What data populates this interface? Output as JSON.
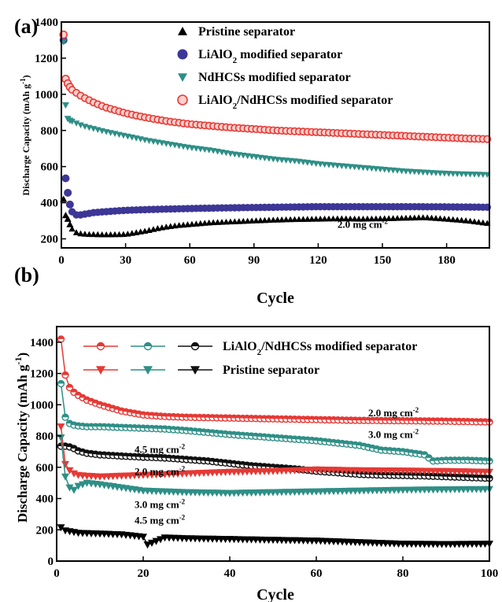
{
  "chart_data": [
    {
      "type": "scatter",
      "panel_label": "(a)",
      "xlabel": "Cycle",
      "ylabel": "Discharge Capacity (mAh g",
      "ylabel_sup": "-1",
      "ylabel_end": ")",
      "xlim": [
        0,
        200
      ],
      "ylim": [
        150,
        1400
      ],
      "xticks": [
        0,
        30,
        60,
        90,
        120,
        150,
        180
      ],
      "yticks": [
        200,
        400,
        600,
        800,
        1000,
        1200,
        1400
      ],
      "annotation": {
        "text": "2.0 mg cm",
        "sup": "-2",
        "x": 129,
        "y": 260
      },
      "legend": [
        {
          "main": "Pristine separator",
          "color": "#000000",
          "marker": "triangle-up"
        },
        {
          "main": "LiAlO",
          "sub": "2",
          "rest": " modified separator",
          "color": "#3c3796",
          "marker": "circle"
        },
        {
          "main": "NdHCSs modified separator",
          "color": "#2e8f86",
          "marker": "triangle-down"
        },
        {
          "main": "LiAlO",
          "sub": "2",
          "rest": "/NdHCSs modified separator",
          "color": "#e53935",
          "marker": "circle-open"
        }
      ],
      "series": [
        {
          "name": "Pristine separator",
          "color": "#000000",
          "marker": "triangle-up",
          "x": [
            1,
            2,
            3,
            4,
            5,
            6,
            8,
            10,
            12,
            15,
            20,
            25,
            30,
            35,
            40,
            45,
            50,
            55,
            60,
            70,
            80,
            90,
            100,
            110,
            120,
            130,
            140,
            150,
            160,
            170,
            180,
            190,
            200
          ],
          "y": [
            420,
            330,
            310,
            280,
            255,
            240,
            230,
            228,
            225,
            225,
            223,
            224,
            225,
            235,
            245,
            258,
            268,
            275,
            280,
            290,
            295,
            300,
            305,
            308,
            310,
            312,
            310,
            312,
            315,
            318,
            310,
            300,
            285
          ]
        },
        {
          "name": "LiAlO2 modified separator",
          "color": "#3c3796",
          "marker": "circle",
          "x": [
            1,
            2,
            3,
            4,
            5,
            6,
            8,
            10,
            15,
            20,
            30,
            40,
            50,
            60,
            80,
            100,
            120,
            140,
            160,
            180,
            200
          ],
          "y": [
            1300,
            535,
            455,
            390,
            350,
            335,
            330,
            335,
            345,
            350,
            358,
            362,
            365,
            368,
            372,
            375,
            378,
            378,
            378,
            377,
            375
          ]
        },
        {
          "name": "NdHCSs modified separator",
          "color": "#2e8f86",
          "marker": "triangle-down",
          "x": [
            1,
            2,
            3,
            4,
            5,
            8,
            10,
            15,
            20,
            30,
            40,
            50,
            60,
            70,
            80,
            90,
            100,
            110,
            120,
            130,
            140,
            150,
            160,
            170,
            180,
            190,
            200
          ],
          "y": [
            1290,
            940,
            865,
            855,
            850,
            835,
            825,
            810,
            795,
            770,
            745,
            725,
            705,
            690,
            670,
            655,
            640,
            630,
            615,
            605,
            595,
            585,
            575,
            568,
            562,
            558,
            555
          ]
        },
        {
          "name": "LiAlO2/NdHCSs modified separator",
          "color": "#e53935",
          "marker": "circle-open",
          "x": [
            1,
            2,
            3,
            4,
            5,
            8,
            10,
            15,
            20,
            30,
            40,
            50,
            60,
            70,
            80,
            90,
            100,
            110,
            120,
            130,
            140,
            150,
            160,
            170,
            180,
            190,
            200
          ],
          "y": [
            1330,
            1085,
            1060,
            1040,
            1025,
            1000,
            985,
            955,
            930,
            895,
            870,
            850,
            835,
            825,
            815,
            808,
            800,
            795,
            790,
            785,
            780,
            775,
            770,
            765,
            760,
            755,
            752
          ]
        }
      ]
    },
    {
      "type": "scatter",
      "panel_label": "(b)",
      "xlabel": "Cycle",
      "ylabel": "Discharge Capacity  (mAh g",
      "ylabel_sup": "-1",
      "ylabel_end": ")",
      "xlim": [
        0,
        100
      ],
      "ylim": [
        0,
        1500
      ],
      "xticks": [
        0,
        20,
        40,
        60,
        80,
        100
      ],
      "yticks": [
        0,
        200,
        400,
        600,
        800,
        1000,
        1200,
        1400
      ],
      "legend": [
        {
          "main": "LiAlO",
          "sub": "2",
          "rest": "/NdHCSs modified separator",
          "markers": [
            "circle-red",
            "circle-teal",
            "circle-black"
          ]
        },
        {
          "main": "Pristine separator",
          "markers": [
            "tri-red",
            "tri-teal",
            "tri-black"
          ]
        }
      ],
      "annotations": [
        {
          "text": "2.0 mg cm",
          "sup": "-2",
          "x": 72,
          "y": 925
        },
        {
          "text": "3.0 mg cm",
          "sup": "-2",
          "x": 72,
          "y": 787
        },
        {
          "text": "4.5 mg cm",
          "sup": "-2",
          "x": 18,
          "y": 693
        },
        {
          "text": "2.0 mg cm",
          "sup": "-2",
          "x": 18,
          "y": 550
        },
        {
          "text": "3.0 mg cm",
          "sup": "-2",
          "x": 18,
          "y": 340
        },
        {
          "text": "4.5 mg cm",
          "sup": "-2",
          "x": 18,
          "y": 240
        }
      ],
      "series": [
        {
          "name": "LiAlO2/NdHCSs 2.0 mg cm-2",
          "color": "#e53935",
          "marker": "circle",
          "x": [
            1,
            2,
            3,
            4,
            5,
            7,
            10,
            15,
            20,
            25,
            30,
            40,
            50,
            60,
            70,
            80,
            90,
            100
          ],
          "y": [
            1420,
            1190,
            1110,
            1080,
            1060,
            1030,
            1000,
            960,
            935,
            925,
            920,
            915,
            910,
            905,
            900,
            898,
            895,
            890
          ]
        },
        {
          "name": "LiAlO2/NdHCSs 3.0 mg cm-2",
          "color": "#2e8f86",
          "marker": "circle",
          "x": [
            1,
            2,
            3,
            4,
            5,
            7,
            10,
            15,
            20,
            25,
            30,
            40,
            50,
            60,
            70,
            75,
            80,
            85,
            87,
            90,
            95,
            100
          ],
          "y": [
            1135,
            920,
            880,
            870,
            865,
            860,
            860,
            855,
            850,
            845,
            835,
            810,
            790,
            770,
            740,
            710,
            700,
            680,
            640,
            645,
            645,
            640
          ]
        },
        {
          "name": "LiAlO2/NdHCSs 4.5 mg cm-2",
          "color": "#111111",
          "marker": "circle",
          "x": [
            1,
            2,
            3,
            4,
            5,
            7,
            10,
            15,
            20,
            25,
            30,
            35,
            40,
            45,
            50,
            55,
            60,
            65,
            70,
            75,
            80,
            85,
            90,
            95,
            100
          ],
          "y": [
            735,
            735,
            730,
            720,
            705,
            690,
            680,
            672,
            665,
            660,
            650,
            640,
            625,
            610,
            600,
            590,
            575,
            565,
            555,
            550,
            548,
            545,
            540,
            535,
            530
          ]
        },
        {
          "name": "Pristine separator 2.0 mg cm-2",
          "color": "#e53935",
          "marker": "triangle-down",
          "x": [
            1,
            2,
            3,
            4,
            5,
            7,
            10,
            15,
            20,
            25,
            30,
            40,
            50,
            60,
            70,
            80,
            90,
            100
          ],
          "y": [
            860,
            620,
            580,
            560,
            550,
            545,
            540,
            545,
            550,
            555,
            560,
            570,
            575,
            585,
            580,
            578,
            575,
            570
          ]
        },
        {
          "name": "Pristine separator 3.0 mg cm-2",
          "color": "#2e8f86",
          "marker": "triangle-down",
          "x": [
            1,
            2,
            3,
            4,
            5,
            7,
            10,
            15,
            20,
            25,
            30,
            40,
            50,
            60,
            70,
            80,
            90,
            100
          ],
          "y": [
            790,
            540,
            470,
            455,
            480,
            500,
            490,
            470,
            450,
            445,
            440,
            435,
            440,
            445,
            450,
            455,
            458,
            460
          ]
        },
        {
          "name": "Pristine separator 4.5 mg cm-2",
          "color": "#000000",
          "marker": "triangle-down",
          "x": [
            1,
            2,
            3,
            4,
            5,
            7,
            10,
            15,
            20,
            21,
            25,
            30,
            40,
            50,
            60,
            70,
            80,
            90,
            100
          ],
          "y": [
            215,
            195,
            190,
            185,
            180,
            178,
            175,
            170,
            155,
            105,
            150,
            145,
            140,
            135,
            130,
            120,
            110,
            108,
            110
          ]
        }
      ]
    }
  ]
}
